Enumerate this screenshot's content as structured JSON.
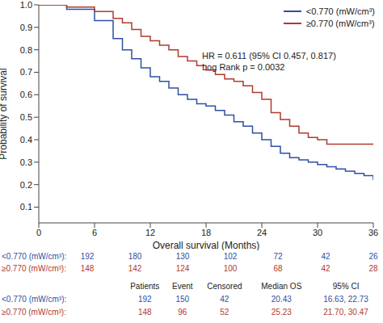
{
  "chart_data": {
    "type": "step",
    "xlabel": "Overall survival (Months)",
    "ylabel": "Probability of survival",
    "x": [
      0,
      3,
      6,
      8,
      9,
      10,
      11,
      12,
      13,
      14,
      15,
      16,
      17,
      18,
      19,
      20,
      21,
      22,
      23,
      24,
      25,
      26,
      27,
      28,
      29,
      30,
      31,
      32,
      33,
      34,
      35,
      36
    ],
    "series": [
      {
        "name": "<0.770 (mW/cm³)",
        "color": "#2e4fa3",
        "values": [
          1.0,
          0.98,
          0.93,
          0.85,
          0.8,
          0.76,
          0.72,
          0.68,
          0.66,
          0.63,
          0.6,
          0.58,
          0.56,
          0.55,
          0.53,
          0.51,
          0.48,
          0.46,
          0.43,
          0.4,
          0.37,
          0.34,
          0.32,
          0.31,
          0.3,
          0.29,
          0.28,
          0.27,
          0.26,
          0.25,
          0.24,
          0.22
        ]
      },
      {
        "name": "≥0.770 (mW/cm³)",
        "color": "#b03a2e",
        "values": [
          1.0,
          0.99,
          0.97,
          0.94,
          0.92,
          0.89,
          0.86,
          0.84,
          0.82,
          0.8,
          0.77,
          0.75,
          0.73,
          0.71,
          0.69,
          0.67,
          0.66,
          0.64,
          0.61,
          0.58,
          0.52,
          0.49,
          0.46,
          0.43,
          0.41,
          0.4,
          0.38,
          0.38,
          0.38,
          0.38,
          0.38,
          0.38
        ]
      }
    ],
    "xlim": [
      0,
      36
    ],
    "xticks": [
      0,
      6,
      12,
      18,
      24,
      30,
      36
    ],
    "ylim": [
      0.03,
      1
    ],
    "yticks": [
      0.1,
      0.2,
      0.3,
      0.4,
      0.5,
      0.6,
      0.7,
      0.8,
      0.9,
      {
        "value": 1,
        "label": "1.0"
      }
    ],
    "grid": false,
    "legend": "upper right",
    "annotations": [
      "HR = 0.611 (95% CI 0.457, 0.817)",
      "Log Rank p = 0.0032"
    ],
    "risk_table": {
      "rows": [
        {
          "label": "<0.770 (mW/cm³):",
          "values": [
            192,
            180,
            130,
            102,
            72,
            42,
            26
          ]
        },
        {
          "label": "≥0.770 (mW/cm³):",
          "values": [
            148,
            142,
            124,
            100,
            68,
            42,
            28
          ]
        }
      ]
    },
    "summary_table": {
      "columns": [
        "Patients",
        "Event",
        "Censored",
        "Median OS",
        "95% CI"
      ],
      "rows": [
        {
          "label": "<0.770 (mW/cm³):",
          "cells": [
            192,
            150,
            42,
            20.43,
            "16.63, 22.73"
          ]
        },
        {
          "label": "≥0.770 (mW/cm³):",
          "cells": [
            148,
            96,
            52,
            25.23,
            "21.70, 30.47"
          ]
        }
      ]
    }
  }
}
